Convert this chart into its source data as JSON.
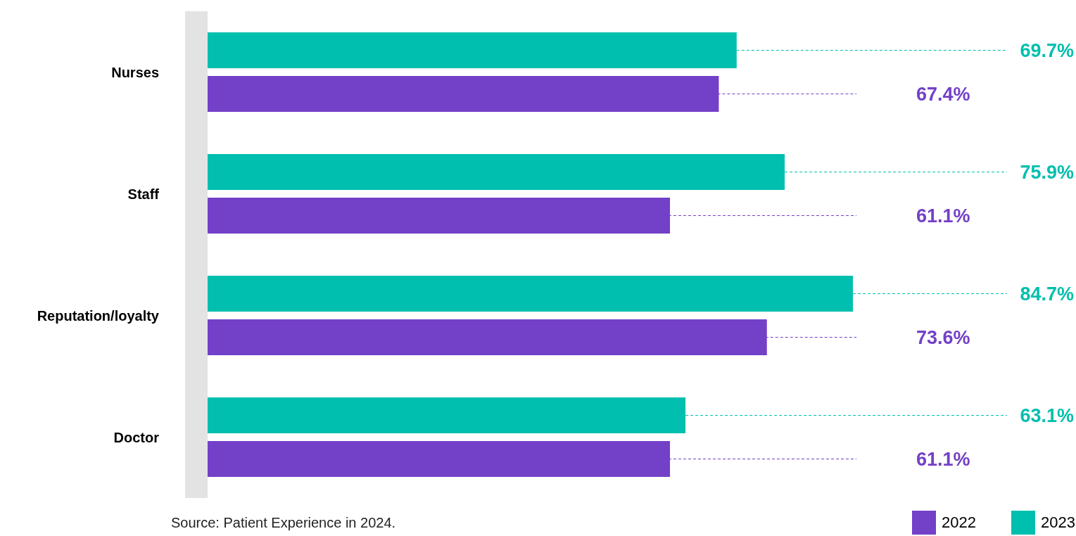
{
  "chart_data": {
    "type": "bar",
    "orientation": "horizontal",
    "categories": [
      "Nurses",
      "Staff",
      "Reputation/loyalty",
      "Doctor"
    ],
    "series": [
      {
        "name": "2023",
        "color": "#00bfae",
        "values": [
          69.7,
          75.9,
          84.7,
          63.1
        ],
        "value_labels": [
          "69.7%",
          "75.9%",
          "84.7%",
          "63.1%"
        ]
      },
      {
        "name": "2022",
        "color": "#7340c8",
        "values": [
          67.4,
          61.1,
          73.6,
          61.1
        ],
        "value_labels": [
          "67.4%",
          "61.1%",
          "73.6%",
          "61.1%"
        ]
      }
    ],
    "legend": "bottom right",
    "tick_labels": "y",
    "annotations": [
      "Source: Patient Experience in 2024."
    ]
  }
}
